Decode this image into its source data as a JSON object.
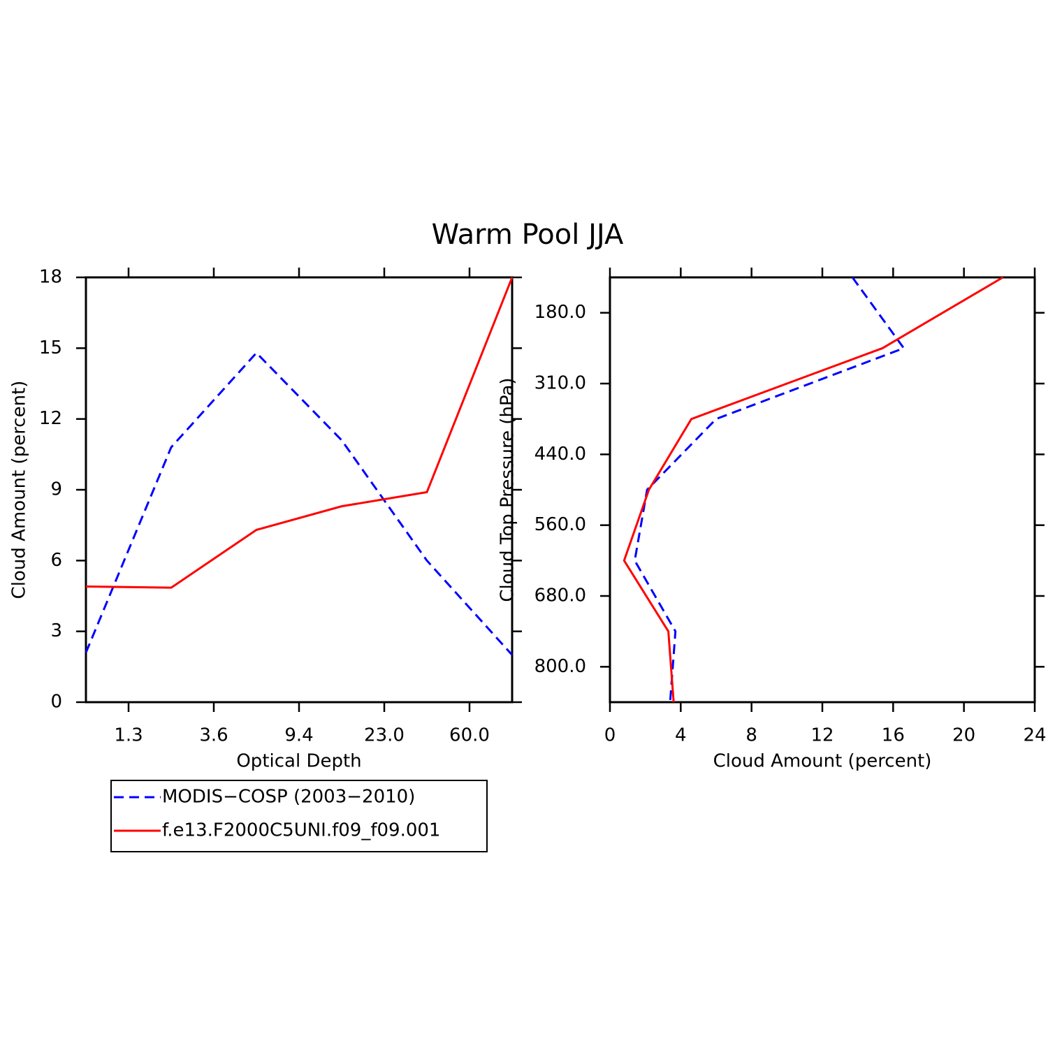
{
  "chart_data": [
    {
      "type": "line",
      "title": "Warm Pool JJA",
      "xlabel": "Optical Depth",
      "ylabel": "Cloud Amount (percent)",
      "x": [
        0,
        2,
        4,
        6,
        8,
        10
      ],
      "xlim": [
        0,
        10
      ],
      "xticks": [
        {
          "value": 1,
          "label": "1.3"
        },
        {
          "value": 3,
          "label": "3.6"
        },
        {
          "value": 5,
          "label": "9.4"
        },
        {
          "value": 7,
          "label": "23.0"
        },
        {
          "value": 9,
          "label": "60.0"
        }
      ],
      "ylim": [
        0,
        18
      ],
      "yticks": [
        0,
        3,
        6,
        9,
        12,
        15,
        18
      ],
      "series": [
        {
          "name": "MODIS−COSP (2003−2010)",
          "color": "#0000ff",
          "dashed": true,
          "values": [
            2.1,
            10.8,
            14.8,
            11.1,
            6.0,
            2.0
          ]
        },
        {
          "name": "f.e13.F2000C5UNI.f09_f09.001",
          "color": "#ff0000",
          "dashed": false,
          "values": [
            4.9,
            4.85,
            7.3,
            8.3,
            8.9,
            18
          ]
        }
      ]
    },
    {
      "type": "line",
      "orientation": "horizontal",
      "xlabel": "Cloud Amount (percent)",
      "ylabel": "Cloud Top Pressure (hPa)",
      "y": [
        0,
        2,
        4,
        6,
        8,
        10,
        12
      ],
      "ylim": [
        12,
        0
      ],
      "yticks": [
        {
          "value": 1,
          "label": "180.0"
        },
        {
          "value": 3,
          "label": "310.0"
        },
        {
          "value": 5,
          "label": "440.0"
        },
        {
          "value": 7,
          "label": "560.0"
        },
        {
          "value": 9,
          "label": "680.0"
        },
        {
          "value": 11,
          "label": "800.0"
        }
      ],
      "xlim": [
        0,
        24
      ],
      "xticks": [
        0,
        4,
        8,
        12,
        16,
        20,
        24
      ],
      "series": [
        {
          "color": "#0000ff",
          "dashed": true,
          "values": [
            13.7,
            16.6,
            6.0,
            2.1,
            1.4,
            3.7,
            3.4
          ]
        },
        {
          "color": "#ff0000",
          "dashed": false,
          "values": [
            22.2,
            15.4,
            4.6,
            2.2,
            0.8,
            3.3,
            3.6
          ]
        }
      ]
    }
  ]
}
